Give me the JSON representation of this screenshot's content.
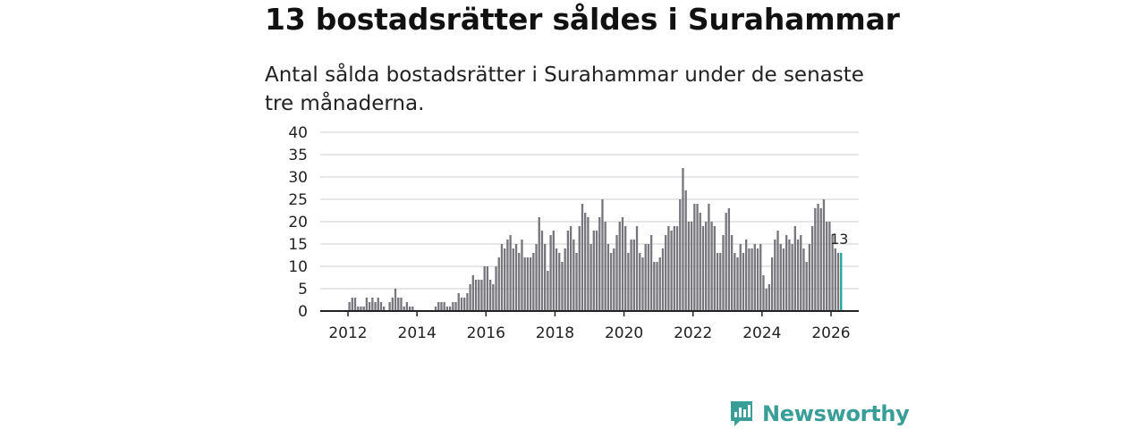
{
  "header": {
    "title": "13 bostadsrätter såldes i Surahammar",
    "subtitle": "Antal sålda bostadsrätter i Surahammar under de senaste tre månaderna."
  },
  "brand": {
    "name": "Newsworthy"
  },
  "colors": {
    "bar": "#76767c",
    "highlight": "#1fa69c",
    "grid": "#d8d8d8",
    "axis": "#222222",
    "brand": "#3a9e98"
  },
  "chart_data": {
    "type": "bar",
    "title": "13 bostadsrätter såldes i Surahammar",
    "xlabel": "",
    "ylabel": "",
    "ylim": [
      0,
      40
    ],
    "yticks": [
      0,
      5,
      10,
      15,
      20,
      25,
      30,
      35,
      40
    ],
    "xticks": [
      "2012",
      "2014",
      "2016",
      "2018",
      "2020",
      "2022",
      "2024",
      "2026"
    ],
    "grid": true,
    "start": "2012-01",
    "frequency": "monthly",
    "highlight_last": true,
    "last_value_label": "13",
    "values": [
      2,
      3,
      3,
      1,
      1,
      1,
      3,
      2,
      3,
      2,
      3,
      2,
      1,
      0,
      2,
      3,
      5,
      3,
      3,
      1,
      2,
      1,
      1,
      0,
      0,
      0,
      0,
      0,
      0,
      0,
      1,
      2,
      2,
      2,
      1,
      1,
      2,
      2,
      4,
      3,
      3,
      4,
      6,
      8,
      7,
      7,
      7,
      10,
      10,
      7,
      6,
      10,
      12,
      15,
      14,
      16,
      17,
      14,
      15,
      13,
      16,
      12,
      12,
      12,
      13,
      15,
      21,
      18,
      15,
      9,
      17,
      18,
      14,
      13,
      11,
      14,
      18,
      19,
      16,
      13,
      19,
      24,
      22,
      21,
      15,
      18,
      18,
      21,
      25,
      20,
      15,
      13,
      14,
      17,
      20,
      21,
      19,
      13,
      16,
      16,
      19,
      13,
      12,
      15,
      15,
      17,
      11,
      11,
      12,
      14,
      17,
      19,
      18,
      19,
      19,
      25,
      32,
      27,
      20,
      20,
      24,
      24,
      22,
      19,
      20,
      24,
      20,
      19,
      13,
      13,
      17,
      22,
      23,
      17,
      13,
      12,
      15,
      13,
      16,
      14,
      14,
      15,
      14,
      15,
      8,
      5,
      6,
      12,
      16,
      18,
      15,
      14,
      17,
      16,
      15,
      19,
      16,
      17,
      14,
      11,
      15,
      19,
      23,
      24,
      23,
      25,
      20,
      20,
      17,
      14,
      13,
      13
    ]
  }
}
